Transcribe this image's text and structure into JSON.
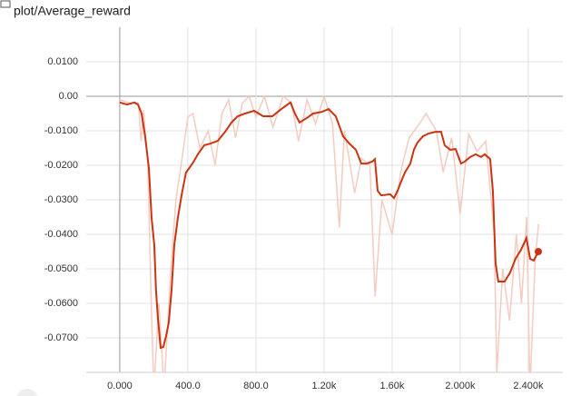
{
  "chart_data": {
    "type": "line",
    "title": "plot/Average_reward",
    "xlim": [
      -197,
      2603
    ],
    "ylim": [
      -0.08,
      0.02
    ],
    "xticks": [
      {
        "value": 0,
        "label": "0.000"
      },
      {
        "value": 400,
        "label": "400.0"
      },
      {
        "value": 800,
        "label": "800.0"
      },
      {
        "value": 1200,
        "label": "1.20k"
      },
      {
        "value": 1600,
        "label": "1.60k"
      },
      {
        "value": 2000,
        "label": "2.000k"
      },
      {
        "value": 2400,
        "label": "2.400k"
      }
    ],
    "yticks": [
      {
        "value": 0.01,
        "label": "0.0100"
      },
      {
        "value": 0,
        "label": "0.00"
      },
      {
        "value": -0.01,
        "label": "-0.0100"
      },
      {
        "value": -0.02,
        "label": "-0.0200"
      },
      {
        "value": -0.03,
        "label": "-0.0300"
      },
      {
        "value": -0.04,
        "label": "-0.0400"
      },
      {
        "value": -0.05,
        "label": "-0.0500"
      },
      {
        "value": -0.06,
        "label": "-0.0600"
      },
      {
        "value": -0.07,
        "label": "-0.0700"
      }
    ],
    "grid": true,
    "series": [
      {
        "color": "#f4cbbf",
        "x": [
          0,
          60,
          110,
          125,
          140,
          165,
          185,
          200,
          230,
          260,
          300,
          330,
          360,
          400,
          430,
          470,
          520,
          560,
          600,
          640,
          680,
          720,
          760,
          800,
          850,
          900,
          960,
          1010,
          1050,
          1100,
          1150,
          1200,
          1250,
          1290,
          1320,
          1380,
          1420,
          1470,
          1500,
          1540,
          1600,
          1650,
          1700,
          1760,
          1800,
          1860,
          1900,
          1950,
          2000,
          2050,
          2100,
          2150,
          2200,
          2215,
          2250,
          2290,
          2330,
          2360,
          2390,
          2410,
          2440,
          2460
        ],
        "values": [
          -0.001,
          -0.002,
          -0.002,
          -0.013,
          -0.004,
          -0.02,
          -0.06,
          -0.085,
          -0.06,
          -0.085,
          -0.05,
          -0.03,
          -0.02,
          -0.006,
          -0.005,
          -0.015,
          -0.01,
          -0.02,
          -0.005,
          -0.001,
          -0.012,
          -0.002,
          0.0,
          -0.006,
          0.0,
          -0.009,
          0.0,
          -0.002,
          -0.013,
          -0.001,
          -0.008,
          0.0,
          -0.008,
          -0.038,
          -0.01,
          -0.028,
          -0.018,
          -0.02,
          -0.058,
          -0.03,
          -0.04,
          -0.022,
          -0.012,
          -0.008,
          -0.005,
          -0.01,
          -0.022,
          -0.012,
          -0.034,
          -0.011,
          -0.016,
          -0.013,
          -0.04,
          -0.08,
          -0.05,
          -0.065,
          -0.04,
          -0.06,
          -0.035,
          -0.085,
          -0.048,
          -0.037
        ]
      },
      {
        "color": "#cc3311",
        "x": [
          0,
          43,
          85,
          107,
          128,
          149,
          171,
          187,
          203,
          213,
          224,
          240,
          256,
          272,
          288,
          304,
          320,
          341,
          363,
          389,
          427,
          459,
          496,
          533,
          576,
          619,
          656,
          693,
          736,
          789,
          843,
          896,
          949,
          1003,
          1029,
          1056,
          1099,
          1136,
          1189,
          1227,
          1269,
          1312,
          1349,
          1387,
          1419,
          1451,
          1483,
          1499,
          1515,
          1536,
          1589,
          1611,
          1632,
          1653,
          1675,
          1707,
          1728,
          1749,
          1781,
          1813,
          1856,
          1888,
          1909,
          1941,
          1973,
          2005,
          2027,
          2059,
          2091,
          2123,
          2144,
          2176,
          2192,
          2208,
          2224,
          2240,
          2261,
          2293,
          2325,
          2357,
          2389,
          2411,
          2432,
          2459
        ],
        "values": [
          -0.0018,
          -0.0024,
          -0.0018,
          -0.0024,
          -0.005,
          -0.0116,
          -0.0208,
          -0.0353,
          -0.0432,
          -0.0563,
          -0.0642,
          -0.0729,
          -0.0726,
          -0.0695,
          -0.0655,
          -0.0563,
          -0.0432,
          -0.0353,
          -0.0287,
          -0.0221,
          -0.0195,
          -0.0168,
          -0.0142,
          -0.0137,
          -0.0129,
          -0.0103,
          -0.0076,
          -0.0058,
          -0.005,
          -0.0042,
          -0.0058,
          -0.0058,
          -0.0037,
          -0.0018,
          -0.005,
          -0.0076,
          -0.0063,
          -0.005,
          -0.0045,
          -0.0037,
          -0.0058,
          -0.0116,
          -0.0137,
          -0.0155,
          -0.0195,
          -0.0195,
          -0.0189,
          -0.0182,
          -0.0274,
          -0.0287,
          -0.0284,
          -0.0295,
          -0.0274,
          -0.0247,
          -0.0221,
          -0.0195,
          -0.0155,
          -0.0134,
          -0.0116,
          -0.0108,
          -0.0103,
          -0.0103,
          -0.0142,
          -0.0155,
          -0.0153,
          -0.0195,
          -0.0189,
          -0.0176,
          -0.0168,
          -0.0176,
          -0.0168,
          -0.0182,
          -0.0274,
          -0.0484,
          -0.0537,
          -0.0537,
          -0.0537,
          -0.0511,
          -0.0471,
          -0.0445,
          -0.0411,
          -0.0471,
          -0.0476,
          -0.045
        ]
      }
    ]
  }
}
